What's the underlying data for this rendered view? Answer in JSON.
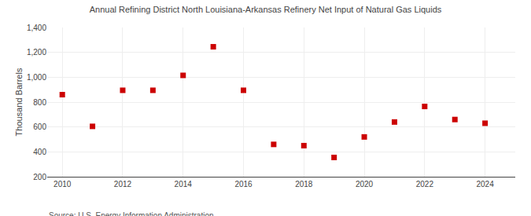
{
  "chart_data": {
    "type": "scatter",
    "title": "Annual Refining District North Louisiana-Arkansas Refinery Net Input of Natural Gas Liquids",
    "ylabel": "Thousand Barrels",
    "annotations": [
      "Source: U.S. Energy Information Administration"
    ],
    "x": [
      2010,
      2011,
      2012,
      2013,
      2014,
      2015,
      2016,
      2017,
      2018,
      2019,
      2020,
      2021,
      2022,
      2023,
      2024
    ],
    "values": [
      860,
      605,
      895,
      895,
      1015,
      1245,
      895,
      460,
      450,
      355,
      520,
      640,
      765,
      660,
      630
    ],
    "color": "#cc0000",
    "marker": "square",
    "xlim": [
      2009.5,
      2025.0
    ],
    "xticks": [
      2010,
      2012,
      2014,
      2016,
      2018,
      2020,
      2022,
      2024
    ],
    "ylim": [
      200,
      1400
    ],
    "yticks": [
      200,
      400,
      600,
      800,
      {
        "value": 1000,
        "label": "1,000"
      },
      {
        "value": 1200,
        "label": "1,200"
      },
      {
        "value": 1400,
        "label": "1,400"
      }
    ],
    "grid": true
  }
}
